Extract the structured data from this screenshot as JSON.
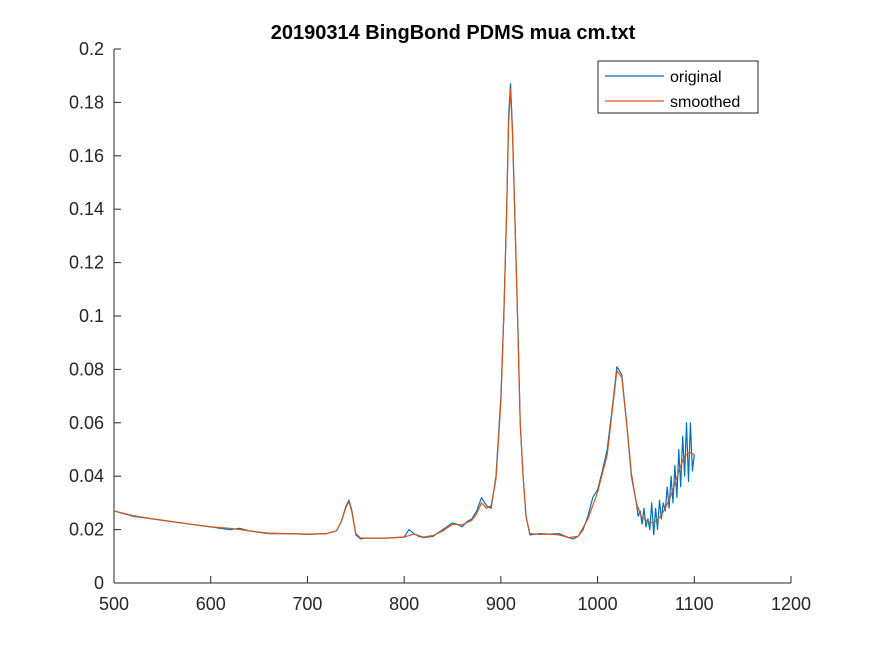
{
  "chart_data": {
    "type": "line",
    "title": "20190314 BingBond PDMS mua cm.txt",
    "xlabel": "",
    "ylabel": "",
    "xlim": [
      500,
      1200
    ],
    "ylim": [
      0,
      0.2
    ],
    "xticks": [
      500,
      600,
      700,
      800,
      900,
      1000,
      1100,
      1200
    ],
    "yticks": [
      0,
      0.02,
      0.04,
      0.06,
      0.08,
      0.1,
      0.12,
      0.14,
      0.16,
      0.18,
      0.2
    ],
    "xtick_labels": [
      "500",
      "600",
      "700",
      "800",
      "900",
      "1000",
      "1100",
      "1200"
    ],
    "ytick_labels": [
      "0",
      "0.02",
      "0.04",
      "0.06",
      "0.08",
      "0.1",
      "0.12",
      "0.14",
      "0.16",
      "0.18",
      "0.2"
    ],
    "grid": false,
    "legend_position": "top-right",
    "colors": {
      "original": "#0072BD",
      "smoothed": "#D95319",
      "axis": "#262626"
    },
    "series": [
      {
        "name": "original",
        "x": [
          500,
          520,
          540,
          560,
          580,
          600,
          610,
          620,
          630,
          640,
          650,
          660,
          680,
          700,
          720,
          730,
          735,
          740,
          743,
          746,
          750,
          755,
          760,
          780,
          800,
          805,
          810,
          815,
          820,
          830,
          840,
          850,
          855,
          860,
          865,
          870,
          875,
          880,
          885,
          890,
          895,
          900,
          903,
          906,
          908,
          910,
          912,
          915,
          918,
          920,
          923,
          926,
          930,
          940,
          950,
          960,
          970,
          975,
          980,
          985,
          990,
          995,
          1000,
          1005,
          1010,
          1015,
          1020,
          1025,
          1030,
          1035,
          1040,
          1042,
          1044,
          1046,
          1048,
          1050,
          1052,
          1054,
          1056,
          1058,
          1060,
          1062,
          1064,
          1066,
          1068,
          1070,
          1072,
          1074,
          1076,
          1078,
          1080,
          1082,
          1084,
          1086,
          1088,
          1090,
          1092,
          1094,
          1096,
          1098,
          1100
        ],
        "y": [
          0.027,
          0.025,
          0.024,
          0.023,
          0.022,
          0.021,
          0.0205,
          0.02,
          0.0205,
          0.0195,
          0.019,
          0.0185,
          0.0185,
          0.0182,
          0.0185,
          0.0195,
          0.023,
          0.029,
          0.031,
          0.027,
          0.018,
          0.0165,
          0.0168,
          0.0168,
          0.0172,
          0.02,
          0.0185,
          0.0175,
          0.017,
          0.0175,
          0.02,
          0.0225,
          0.022,
          0.021,
          0.023,
          0.024,
          0.027,
          0.032,
          0.029,
          0.028,
          0.04,
          0.07,
          0.1,
          0.14,
          0.175,
          0.187,
          0.17,
          0.13,
          0.09,
          0.06,
          0.04,
          0.025,
          0.018,
          0.0185,
          0.0183,
          0.0185,
          0.017,
          0.0165,
          0.0175,
          0.02,
          0.025,
          0.032,
          0.035,
          0.042,
          0.05,
          0.065,
          0.081,
          0.078,
          0.06,
          0.04,
          0.03,
          0.025,
          0.027,
          0.022,
          0.028,
          0.021,
          0.024,
          0.02,
          0.03,
          0.018,
          0.028,
          0.02,
          0.031,
          0.024,
          0.03,
          0.027,
          0.036,
          0.028,
          0.04,
          0.03,
          0.044,
          0.032,
          0.05,
          0.036,
          0.055,
          0.04,
          0.06,
          0.038,
          0.06,
          0.042,
          0.048
        ]
      },
      {
        "name": "smoothed",
        "x": [
          500,
          520,
          540,
          560,
          580,
          600,
          620,
          640,
          660,
          680,
          700,
          720,
          730,
          735,
          740,
          743,
          746,
          750,
          755,
          760,
          780,
          800,
          810,
          820,
          830,
          840,
          850,
          860,
          870,
          875,
          880,
          885,
          890,
          895,
          900,
          903,
          906,
          908,
          910,
          912,
          915,
          918,
          920,
          923,
          926,
          930,
          940,
          950,
          960,
          970,
          980,
          990,
          1000,
          1010,
          1015,
          1020,
          1025,
          1030,
          1035,
          1040,
          1045,
          1050,
          1055,
          1060,
          1065,
          1070,
          1075,
          1080,
          1085,
          1090,
          1095,
          1100
        ],
        "y": [
          0.027,
          0.0252,
          0.024,
          0.023,
          0.022,
          0.021,
          0.0205,
          0.0195,
          0.0187,
          0.0185,
          0.0183,
          0.0185,
          0.0195,
          0.023,
          0.0285,
          0.0305,
          0.0265,
          0.0185,
          0.0168,
          0.0168,
          0.0168,
          0.0172,
          0.0183,
          0.0172,
          0.0178,
          0.0195,
          0.022,
          0.0218,
          0.0235,
          0.026,
          0.03,
          0.028,
          0.029,
          0.039,
          0.068,
          0.1,
          0.14,
          0.172,
          0.185,
          0.168,
          0.13,
          0.088,
          0.06,
          0.04,
          0.025,
          0.0185,
          0.0182,
          0.0183,
          0.018,
          0.017,
          0.0175,
          0.024,
          0.034,
          0.048,
          0.064,
          0.0795,
          0.077,
          0.06,
          0.041,
          0.03,
          0.025,
          0.0235,
          0.0225,
          0.023,
          0.025,
          0.028,
          0.032,
          0.037,
          0.043,
          0.0475,
          0.049,
          0.048
        ]
      }
    ]
  }
}
